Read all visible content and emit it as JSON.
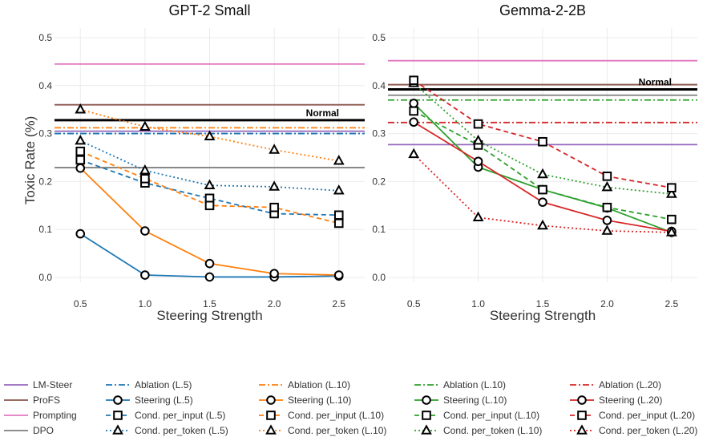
{
  "figure": {
    "ylabel": "Toxic Rate (%)",
    "colors": {
      "lmsteer": "#9467bd",
      "profs": "#8c564b",
      "prompting": "#e377c2",
      "dpo": "#7f7f7f",
      "c5": "#1f77b4",
      "c10_gpt": "#ff7f0e",
      "c10_gemma": "#2ca02c",
      "c20": "#d62728",
      "normal": "#000000"
    }
  },
  "chart_data": [
    {
      "type": "line",
      "title": "GPT-2 Small",
      "xlabel": "Steering Strength",
      "ylabel": "Toxic Rate (%)",
      "x": [
        0.5,
        1.0,
        1.5,
        2.0,
        2.5
      ],
      "xticks": [
        "0.5",
        "1.0",
        "1.5",
        "2.0",
        "2.5"
      ],
      "yticks": [
        "0.0",
        "0.1",
        "0.2",
        "0.3",
        "0.4",
        "0.5"
      ],
      "ylim": [
        -0.01,
        0.52
      ],
      "xlim": [
        0.3,
        2.7
      ],
      "normal_label": "Normal",
      "hlines": [
        {
          "name": "Normal",
          "value": 0.328,
          "color": "#000000",
          "dash": "solid",
          "width": 3
        },
        {
          "name": "LM-Steer",
          "value": 0.305,
          "color": "#9467bd",
          "dash": "solid",
          "width": 1.8
        },
        {
          "name": "ProFS",
          "value": 0.36,
          "color": "#8c564b",
          "dash": "solid",
          "width": 1.8
        },
        {
          "name": "Prompting",
          "value": 0.445,
          "color": "#e377c2",
          "dash": "solid",
          "width": 1.8
        },
        {
          "name": "DPO",
          "value": 0.229,
          "color": "#7f7f7f",
          "dash": "solid",
          "width": 1.8
        },
        {
          "name": "Ablation (L.5)",
          "value": 0.3,
          "color": "#1f77b4",
          "dash": "dashdot",
          "width": 1.8
        },
        {
          "name": "Ablation (L.10)",
          "value": 0.312,
          "color": "#ff7f0e",
          "dash": "dashdot",
          "width": 1.8
        }
      ],
      "series": [
        {
          "name": "Steering (L.5)",
          "color": "#1f77b4",
          "dash": "solid",
          "marker": "circle",
          "values": [
            0.091,
            0.005,
            0.001,
            0.001,
            0.003
          ]
        },
        {
          "name": "Cond. per_input (L.5)",
          "color": "#1f77b4",
          "dash": "dashed",
          "marker": "square",
          "values": [
            0.245,
            0.197,
            0.165,
            0.133,
            0.13
          ]
        },
        {
          "name": "Cond. per_token (L.5)",
          "color": "#1f77b4",
          "dash": "dotted",
          "marker": "triangle",
          "values": [
            0.285,
            0.223,
            0.192,
            0.189,
            0.181
          ]
        },
        {
          "name": "Steering (L.10)",
          "color": "#ff7f0e",
          "dash": "solid",
          "marker": "circle",
          "values": [
            0.228,
            0.097,
            0.029,
            0.008,
            0.005
          ]
        },
        {
          "name": "Cond. per_input (L.10)",
          "color": "#ff7f0e",
          "dash": "dashed",
          "marker": "square",
          "values": [
            0.263,
            0.206,
            0.15,
            0.146,
            0.113
          ]
        },
        {
          "name": "Cond. per_token (L.10)",
          "color": "#ff7f0e",
          "dash": "dotted",
          "marker": "triangle",
          "values": [
            0.35,
            0.314,
            0.294,
            0.266,
            0.243
          ]
        }
      ]
    },
    {
      "type": "line",
      "title": "Gemma-2-2B",
      "xlabel": "Steering Strength",
      "ylabel": "",
      "x": [
        0.5,
        1.0,
        1.5,
        2.0,
        2.5
      ],
      "xticks": [
        "0.5",
        "1.0",
        "1.5",
        "2.0",
        "2.5"
      ],
      "yticks": [
        "0.0",
        "0.1",
        "0.2",
        "0.3",
        "0.4",
        "0.5"
      ],
      "ylim": [
        -0.01,
        0.52
      ],
      "xlim": [
        0.3,
        2.7
      ],
      "normal_label": "Normal",
      "hlines": [
        {
          "name": "Normal",
          "value": 0.392,
          "color": "#000000",
          "dash": "solid",
          "width": 3
        },
        {
          "name": "LM-Steer",
          "value": 0.277,
          "color": "#9467bd",
          "dash": "solid",
          "width": 1.8
        },
        {
          "name": "ProFS",
          "value": 0.402,
          "color": "#8c564b",
          "dash": "solid",
          "width": 1.8
        },
        {
          "name": "Prompting",
          "value": 0.452,
          "color": "#e377c2",
          "dash": "solid",
          "width": 1.8
        },
        {
          "name": "DPO",
          "value": 0.38,
          "color": "#7f7f7f",
          "dash": "solid",
          "width": 1.8
        },
        {
          "name": "Ablation (L.10)",
          "value": 0.37,
          "color": "#2ca02c",
          "dash": "dashdot",
          "width": 1.8
        },
        {
          "name": "Ablation (L.20)",
          "value": 0.323,
          "color": "#d62728",
          "dash": "dashdot",
          "width": 1.8
        }
      ],
      "series": [
        {
          "name": "Steering (L.10)",
          "color": "#2ca02c",
          "dash": "solid",
          "marker": "circle",
          "values": [
            0.363,
            0.23,
            0.183,
            0.145,
            0.094
          ]
        },
        {
          "name": "Cond. per_input (L.10)",
          "color": "#2ca02c",
          "dash": "dashed",
          "marker": "square",
          "values": [
            0.347,
            0.276,
            0.183,
            0.146,
            0.121
          ]
        },
        {
          "name": "Cond. per_token (L.10)",
          "color": "#2ca02c",
          "dash": "dotted",
          "marker": "triangle",
          "values": [
            0.405,
            0.285,
            0.215,
            0.188,
            0.174
          ]
        },
        {
          "name": "Steering (L.20)",
          "color": "#d62728",
          "dash": "solid",
          "marker": "circle",
          "values": [
            0.324,
            0.242,
            0.157,
            0.119,
            0.096
          ]
        },
        {
          "name": "Cond. per_input (L.20)",
          "color": "#d62728",
          "dash": "dashed",
          "marker": "square",
          "values": [
            0.411,
            0.32,
            0.283,
            0.211,
            0.187
          ]
        },
        {
          "name": "Cond. per_token (L.20)",
          "color": "#d62728",
          "dash": "dotted",
          "marker": "triangle",
          "values": [
            0.257,
            0.125,
            0.108,
            0.097,
            0.094
          ]
        }
      ]
    }
  ],
  "legend": {
    "columns": [
      [
        {
          "label": "LM-Steer",
          "color": "#9467bd",
          "dash": "solid",
          "marker": "none"
        },
        {
          "label": "ProFS",
          "color": "#8c564b",
          "dash": "solid",
          "marker": "none"
        },
        {
          "label": "Prompting",
          "color": "#e377c2",
          "dash": "solid",
          "marker": "none"
        },
        {
          "label": "DPO",
          "color": "#7f7f7f",
          "dash": "solid",
          "marker": "none"
        }
      ],
      [
        {
          "label": "Ablation (L.5)",
          "color": "#1f77b4",
          "dash": "dashdot",
          "marker": "none"
        },
        {
          "label": "Steering (L.5)",
          "color": "#1f77b4",
          "dash": "solid",
          "marker": "circle"
        },
        {
          "label": "Cond. per_input (L.5)",
          "color": "#1f77b4",
          "dash": "dashed",
          "marker": "square"
        },
        {
          "label": "Cond. per_token (L.5)",
          "color": "#1f77b4",
          "dash": "dotted",
          "marker": "triangle"
        }
      ],
      [
        {
          "label": "Ablation (L.10)",
          "color": "#ff7f0e",
          "dash": "dashdot",
          "marker": "none"
        },
        {
          "label": "Steering (L.10)",
          "color": "#ff7f0e",
          "dash": "solid",
          "marker": "circle"
        },
        {
          "label": "Cond. per_input (L.10)",
          "color": "#ff7f0e",
          "dash": "dashed",
          "marker": "square"
        },
        {
          "label": "Cond. per_token (L.10)",
          "color": "#ff7f0e",
          "dash": "dotted",
          "marker": "triangle"
        }
      ],
      [
        {
          "label": "Ablation (L.10)",
          "color": "#2ca02c",
          "dash": "dashdot",
          "marker": "none"
        },
        {
          "label": "Steering (L.10)",
          "color": "#2ca02c",
          "dash": "solid",
          "marker": "circle"
        },
        {
          "label": "Cond. per_input (L.10)",
          "color": "#2ca02c",
          "dash": "dashed",
          "marker": "square"
        },
        {
          "label": "Cond. per_token (L.10)",
          "color": "#2ca02c",
          "dash": "dotted",
          "marker": "triangle"
        }
      ],
      [
        {
          "label": "Ablation (L.20)",
          "color": "#d62728",
          "dash": "dashdot",
          "marker": "none"
        },
        {
          "label": "Steering (L.20)",
          "color": "#d62728",
          "dash": "solid",
          "marker": "circle"
        },
        {
          "label": "Cond. per_input (L.20)",
          "color": "#d62728",
          "dash": "dashed",
          "marker": "square"
        },
        {
          "label": "Cond. per_token (L.20)",
          "color": "#d62728",
          "dash": "dotted",
          "marker": "triangle"
        }
      ]
    ]
  }
}
